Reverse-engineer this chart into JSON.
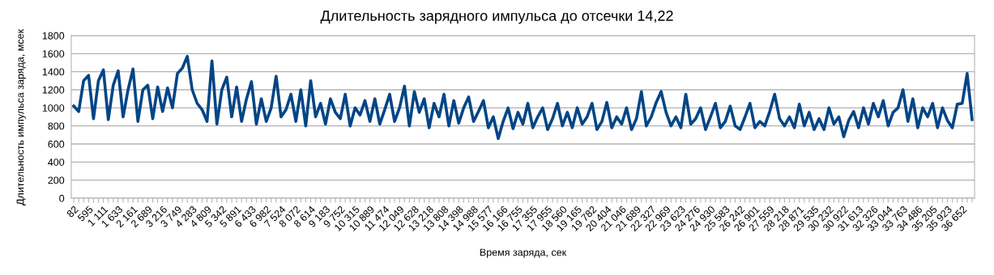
{
  "chart_data": {
    "type": "line",
    "title": "Длительность зарядного импульса до отсечки 14,22",
    "xlabel": "Время заряда, сек",
    "ylabel": "Длительность импульса заряда, мсек",
    "categories": [
      "82",
      null,
      null,
      "595",
      null,
      null,
      "1 111",
      null,
      null,
      "1 633",
      null,
      null,
      "2 161",
      null,
      null,
      "2 689",
      null,
      null,
      "3 216",
      null,
      null,
      "3 749",
      null,
      null,
      "4 283",
      null,
      null,
      "4 809",
      null,
      null,
      "5 342",
      null,
      null,
      "5 891",
      null,
      null,
      "6 433",
      null,
      null,
      "6 982",
      null,
      null,
      "7 524",
      null,
      null,
      "8 072",
      null,
      null,
      "8 614",
      null,
      null,
      "9 183",
      null,
      null,
      "9 752",
      null,
      null,
      "10 315",
      null,
      null,
      "10 889",
      null,
      null,
      "11 474",
      null,
      null,
      "12 049",
      null,
      null,
      "12 628",
      null,
      null,
      "13 218",
      null,
      null,
      "13 808",
      null,
      null,
      "14 398",
      null,
      null,
      "14 988",
      null,
      null,
      "15 577",
      null,
      null,
      "16 166",
      null,
      null,
      "16 755",
      null,
      null,
      "17 355",
      null,
      null,
      "17 955",
      null,
      null,
      "18 560",
      null,
      null,
      "19 165",
      null,
      null,
      "19 782",
      null,
      null,
      "20 404",
      null,
      null,
      "21 046",
      null,
      null,
      "21 689",
      null,
      null,
      "22 327",
      null,
      null,
      "22 969",
      null,
      null,
      "23 623",
      null,
      null,
      "24 276",
      null,
      null,
      "24 930",
      null,
      null,
      "25 583",
      null,
      null,
      "26 242",
      null,
      null,
      "26 901",
      null,
      null,
      "27 559",
      null,
      null,
      "28 218",
      null,
      null,
      "28 871",
      null,
      null,
      "29 535",
      null,
      null,
      "30 232",
      null,
      null,
      "30 922",
      null,
      null,
      "31 613",
      null,
      null,
      "32 326",
      null,
      null,
      "33 044",
      null,
      null,
      "33 763",
      null,
      null,
      "34 486",
      null,
      null,
      "35 205",
      null,
      null,
      "35 923",
      null,
      null,
      "36 652",
      null,
      null
    ],
    "series": [
      {
        "color": "#004586",
        "values": [
          1020,
          960,
          1300,
          1360,
          880,
          1300,
          1420,
          870,
          1250,
          1410,
          900,
          1200,
          1430,
          850,
          1200,
          1250,
          880,
          1230,
          960,
          1220,
          1000,
          1380,
          1440,
          1570,
          1200,
          1050,
          980,
          850,
          1520,
          820,
          1200,
          1340,
          900,
          1230,
          850,
          1100,
          1290,
          820,
          1100,
          850,
          1000,
          1350,
          900,
          980,
          1150,
          850,
          1200,
          800,
          1300,
          900,
          1050,
          820,
          1100,
          950,
          880,
          1150,
          800,
          1000,
          920,
          1080,
          850,
          1100,
          820,
          980,
          1150,
          850,
          1000,
          1240,
          800,
          1180,
          950,
          1100,
          780,
          1050,
          900,
          1150,
          800,
          1080,
          830,
          1000,
          1120,
          850,
          960,
          1080,
          780,
          900,
          660,
          850,
          1000,
          770,
          950,
          820,
          1050,
          780,
          900,
          1000,
          760,
          880,
          1050,
          800,
          950,
          780,
          1000,
          820,
          900,
          1050,
          760,
          850,
          1060,
          780,
          900,
          820,
          1000,
          760,
          880,
          1180,
          800,
          900,
          1060,
          1180,
          950,
          800,
          900,
          780,
          1150,
          820,
          880,
          1000,
          760,
          900,
          1050,
          780,
          850,
          1020,
          800,
          760,
          900,
          1050,
          780,
          850,
          800,
          960,
          1150,
          880,
          800,
          900,
          780,
          1040,
          800,
          950,
          760,
          880,
          760,
          1000,
          820,
          900,
          680,
          860,
          960,
          780,
          1000,
          820,
          1050,
          900,
          1080,
          800,
          950,
          1000,
          1200,
          850,
          1100,
          780,
          1000,
          900,
          1050,
          780,
          1000,
          860,
          780,
          1040,
          1050,
          1380,
          870
        ]
      }
    ],
    "ylim": [
      0,
      1800
    ],
    "yticks": [
      0,
      200,
      400,
      600,
      800,
      1000,
      1200,
      1400,
      1600,
      1800
    ],
    "grid": "y",
    "legend": false,
    "marker": "none",
    "line_style": "solid"
  }
}
